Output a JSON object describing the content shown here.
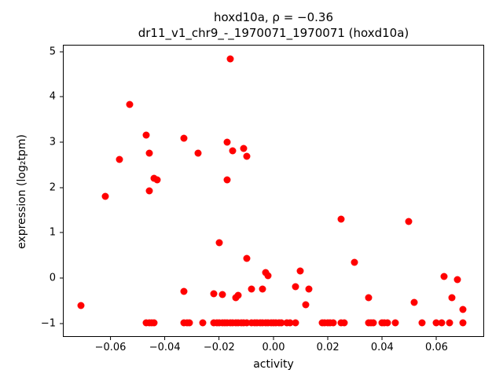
{
  "chart_data": {
    "type": "scatter",
    "title": "hoxd10a, ρ = −0.36",
    "subtitle": "dr11_v1_chr9_-_1970071_1970071 (hoxd10a)",
    "xlabel": "activity",
    "ylabel": "expression (log₂tpm)",
    "xlim": [
      -0.0775,
      0.0775
    ],
    "ylim": [
      -1.3,
      5.15
    ],
    "xticks": [
      -0.06,
      -0.04,
      -0.02,
      0.0,
      0.02,
      0.04,
      0.06
    ],
    "yticks": [
      -1,
      0,
      1,
      2,
      3,
      4,
      5
    ],
    "marker_color": "#ff0000",
    "legend": "none",
    "grid": false,
    "points": [
      [
        -0.071,
        -0.62
      ],
      [
        -0.062,
        1.81
      ],
      [
        -0.057,
        2.62
      ],
      [
        -0.053,
        3.85
      ],
      [
        -0.047,
        3.17
      ],
      [
        -0.046,
        2.77
      ],
      [
        -0.046,
        1.93
      ],
      [
        -0.044,
        2.2
      ],
      [
        -0.043,
        2.17
      ],
      [
        -0.033,
        3.1
      ],
      [
        -0.033,
        -0.3
      ],
      [
        -0.028,
        2.77
      ],
      [
        -0.022,
        -0.35
      ],
      [
        -0.02,
        0.78
      ],
      [
        -0.019,
        -0.38
      ],
      [
        -0.017,
        3.0
      ],
      [
        -0.017,
        2.17
      ],
      [
        -0.016,
        4.85
      ],
      [
        -0.015,
        2.82
      ],
      [
        -0.014,
        -0.45
      ],
      [
        -0.013,
        -0.4
      ],
      [
        -0.011,
        2.87
      ],
      [
        -0.01,
        2.7
      ],
      [
        -0.01,
        0.43
      ],
      [
        -0.008,
        -0.25
      ],
      [
        -0.004,
        -0.25
      ],
      [
        -0.003,
        0.12
      ],
      [
        -0.002,
        0.05
      ],
      [
        0.008,
        -0.2
      ],
      [
        0.01,
        0.15
      ],
      [
        0.012,
        -0.6
      ],
      [
        0.013,
        -0.25
      ],
      [
        0.025,
        1.3
      ],
      [
        0.03,
        0.33
      ],
      [
        0.035,
        -0.45
      ],
      [
        0.05,
        1.25
      ],
      [
        0.052,
        -0.55
      ],
      [
        0.063,
        0.02
      ],
      [
        0.066,
        -0.45
      ],
      [
        0.068,
        -0.05
      ],
      [
        0.07,
        -0.7
      ],
      [
        -0.047,
        -1
      ],
      [
        -0.046,
        -1
      ],
      [
        -0.045,
        -1
      ],
      [
        -0.044,
        -1
      ],
      [
        -0.033,
        -1
      ],
      [
        -0.032,
        -1
      ],
      [
        -0.031,
        -1
      ],
      [
        -0.026,
        -1
      ],
      [
        -0.022,
        -1
      ],
      [
        -0.021,
        -1
      ],
      [
        -0.02,
        -1
      ],
      [
        -0.019,
        -1
      ],
      [
        -0.018,
        -1
      ],
      [
        -0.017,
        -1
      ],
      [
        -0.016,
        -1
      ],
      [
        -0.015,
        -1
      ],
      [
        -0.014,
        -1
      ],
      [
        -0.013,
        -1
      ],
      [
        -0.012,
        -1
      ],
      [
        -0.011,
        -1
      ],
      [
        -0.01,
        -1
      ],
      [
        -0.008,
        -1
      ],
      [
        -0.007,
        -1
      ],
      [
        -0.006,
        -1
      ],
      [
        -0.005,
        -1
      ],
      [
        -0.004,
        -1
      ],
      [
        -0.003,
        -1
      ],
      [
        -0.002,
        -1
      ],
      [
        -0.001,
        -1
      ],
      [
        0.0,
        -1
      ],
      [
        0.001,
        -1
      ],
      [
        0.002,
        -1
      ],
      [
        0.003,
        -1
      ],
      [
        0.005,
        -1
      ],
      [
        0.006,
        -1
      ],
      [
        0.008,
        -1
      ],
      [
        0.018,
        -1
      ],
      [
        0.019,
        -1
      ],
      [
        0.02,
        -1
      ],
      [
        0.021,
        -1
      ],
      [
        0.022,
        -1
      ],
      [
        0.025,
        -1
      ],
      [
        0.026,
        -1
      ],
      [
        0.035,
        -1
      ],
      [
        0.036,
        -1
      ],
      [
        0.037,
        -1
      ],
      [
        0.04,
        -1
      ],
      [
        0.041,
        -1
      ],
      [
        0.042,
        -1
      ],
      [
        0.045,
        -1
      ],
      [
        0.055,
        -1
      ],
      [
        0.06,
        -1
      ],
      [
        0.062,
        -1
      ],
      [
        0.065,
        -1
      ],
      [
        0.07,
        -1
      ]
    ]
  }
}
